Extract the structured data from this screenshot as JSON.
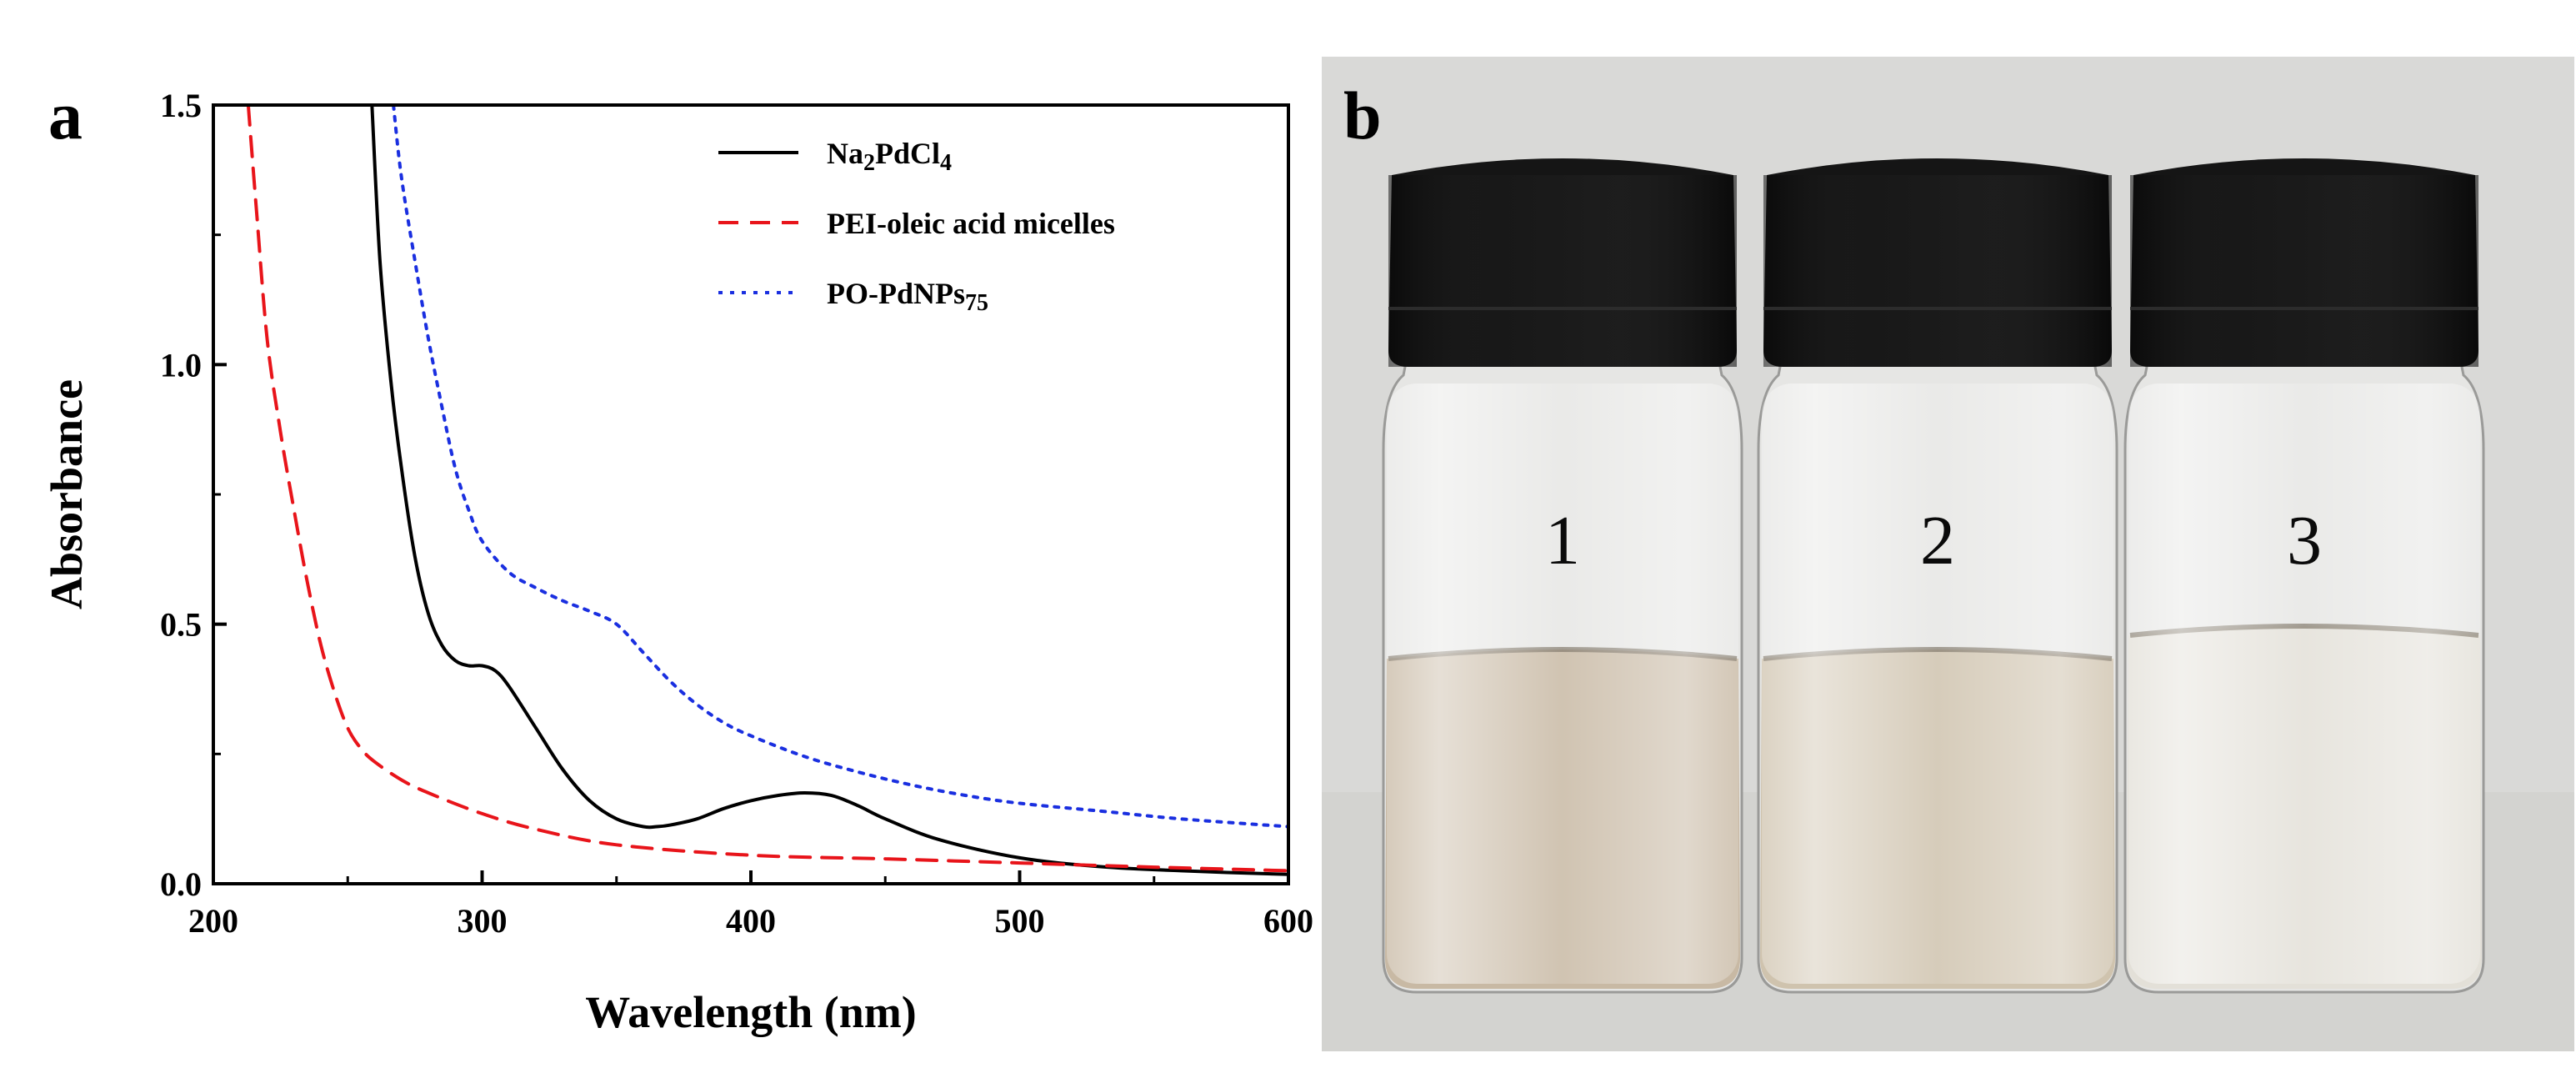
{
  "panels": {
    "a": "a",
    "b": "b"
  },
  "chart_data": {
    "type": "line",
    "title": "",
    "xlabel": "Wavelength (nm)",
    "ylabel": "Absorbance",
    "xlim": [
      200,
      600
    ],
    "ylim": [
      0,
      1.5
    ],
    "xticks": [
      200,
      300,
      400,
      500,
      600
    ],
    "yticks": [
      0.0,
      0.5,
      1.0,
      1.5
    ],
    "xtick_labels": [
      "200",
      "300",
      "400",
      "500",
      "600"
    ],
    "ytick_labels": [
      "0.0",
      "0.5",
      "1.0",
      "1.5"
    ],
    "grid": false,
    "legend_position": "top-right",
    "series": [
      {
        "legend_parts": [
          {
            "text": "Na",
            "sub": false
          },
          {
            "text": "2",
            "sub": true
          },
          {
            "text": "PdCl",
            "sub": false
          },
          {
            "text": "4",
            "sub": true
          }
        ],
        "color": "#000000",
        "dash": "solid",
        "x": [
          259,
          262,
          266,
          270,
          275,
          280,
          285,
          290,
          295,
          300,
          305,
          310,
          320,
          330,
          340,
          350,
          360,
          365,
          370,
          380,
          390,
          400,
          410,
          420,
          430,
          440,
          450,
          470,
          500,
          530,
          560,
          600
        ],
        "y": [
          1.5,
          1.2,
          0.97,
          0.8,
          0.63,
          0.52,
          0.46,
          0.43,
          0.42,
          0.42,
          0.41,
          0.38,
          0.3,
          0.22,
          0.16,
          0.125,
          0.11,
          0.11,
          0.113,
          0.125,
          0.145,
          0.16,
          0.17,
          0.175,
          0.17,
          0.15,
          0.125,
          0.085,
          0.05,
          0.033,
          0.025,
          0.018
        ]
      },
      {
        "legend_parts": [
          {
            "text": "PEI-oleic acid micelles",
            "sub": false
          }
        ],
        "color": "#e8141a",
        "dash": "dashed",
        "x": [
          213,
          216,
          220,
          225,
          230,
          235,
          240,
          245,
          250,
          255,
          260,
          270,
          280,
          300,
          320,
          350,
          400,
          450,
          500,
          550,
          600
        ],
        "y": [
          1.5,
          1.3,
          1.05,
          0.87,
          0.72,
          0.58,
          0.46,
          0.37,
          0.3,
          0.26,
          0.235,
          0.2,
          0.175,
          0.135,
          0.105,
          0.075,
          0.055,
          0.048,
          0.04,
          0.032,
          0.025
        ]
      },
      {
        "legend_parts": [
          {
            "text": "PO-PdNPs",
            "sub": false
          },
          {
            "text": "75",
            "sub": true
          }
        ],
        "color": "#1a2fe0",
        "dash": "dotted",
        "x": [
          267,
          270,
          275,
          280,
          285,
          290,
          295,
          300,
          310,
          320,
          330,
          340,
          350,
          360,
          370,
          380,
          390,
          400,
          420,
          440,
          460,
          480,
          500,
          530,
          560,
          600
        ],
        "y": [
          1.5,
          1.36,
          1.2,
          1.05,
          0.92,
          0.8,
          0.72,
          0.66,
          0.6,
          0.57,
          0.545,
          0.525,
          0.5,
          0.445,
          0.39,
          0.345,
          0.31,
          0.285,
          0.245,
          0.215,
          0.19,
          0.17,
          0.155,
          0.14,
          0.125,
          0.11
        ]
      }
    ]
  },
  "photo": {
    "background_color": "#d9d9d7",
    "cap_color": "#151515",
    "vials": [
      {
        "label": "1",
        "liquid_color": "#c8b9a4"
      },
      {
        "label": "2",
        "liquid_color": "#cfc3ae"
      },
      {
        "label": "3",
        "liquid_color": "#e3e0d8"
      }
    ]
  }
}
